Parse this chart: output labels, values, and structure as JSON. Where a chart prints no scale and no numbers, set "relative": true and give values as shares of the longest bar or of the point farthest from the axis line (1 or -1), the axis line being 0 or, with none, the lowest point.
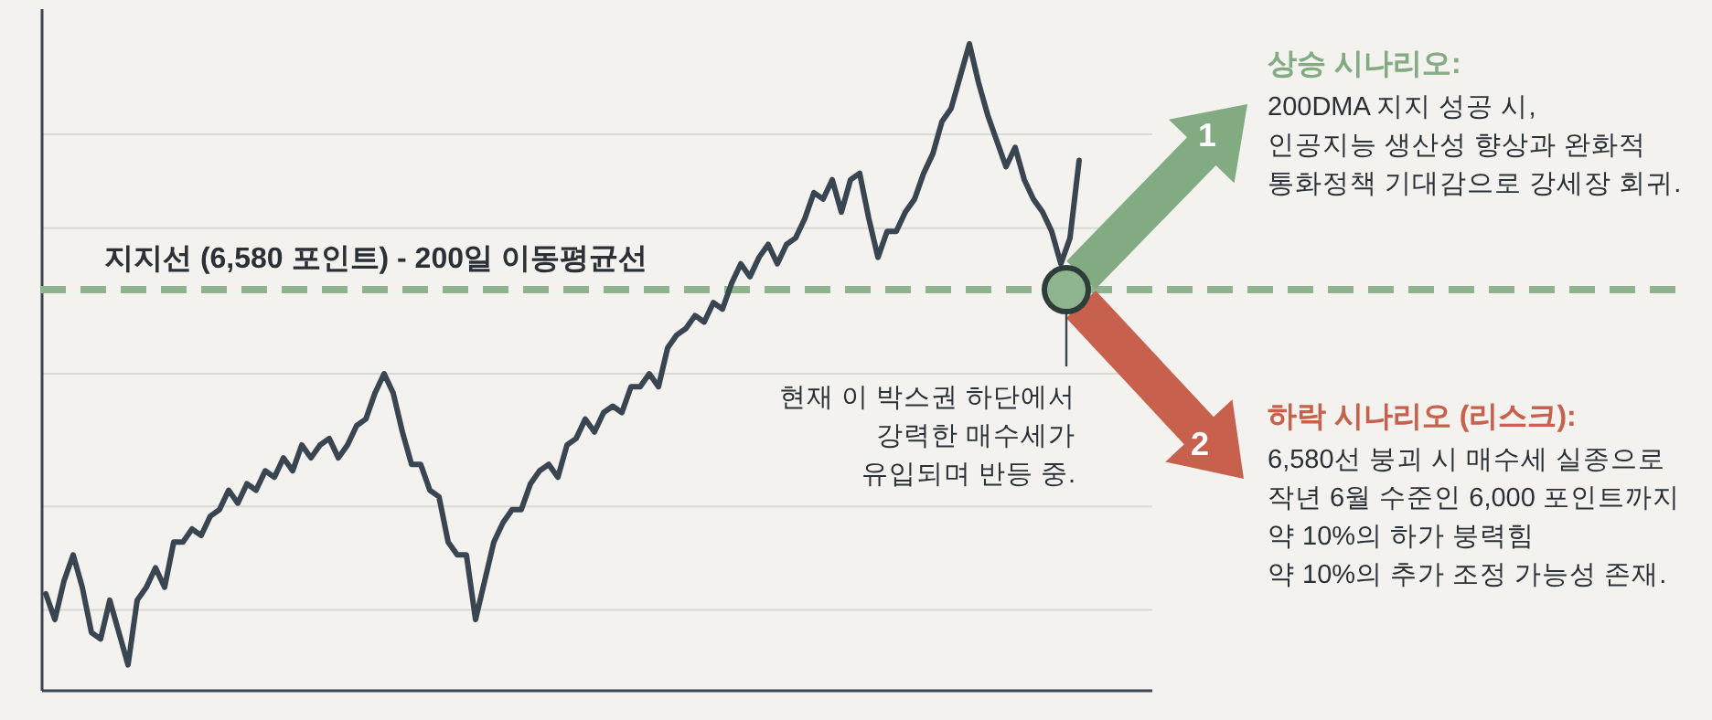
{
  "chart_data": {
    "type": "line",
    "relative": true,
    "grid": true,
    "categories": [
      null,
      null,
      null,
      null,
      null,
      null,
      null,
      null,
      null,
      null,
      null,
      null,
      null,
      null,
      null,
      null,
      null,
      null,
      null,
      null,
      null,
      null,
      null,
      null,
      null,
      null,
      null,
      null,
      null,
      null,
      null,
      null,
      null,
      null,
      null,
      null,
      null,
      null,
      null,
      null,
      null,
      null,
      null,
      null,
      null,
      null,
      null,
      null,
      null,
      null,
      null,
      null,
      null,
      null,
      null,
      null,
      null,
      null,
      null,
      null,
      null,
      null,
      null,
      null,
      null,
      null,
      null,
      null,
      null,
      null,
      null,
      null,
      null,
      null,
      null,
      null,
      null,
      null,
      null,
      null,
      null,
      null,
      null,
      null,
      null,
      null,
      null,
      null,
      null,
      null,
      null,
      null,
      null,
      null,
      null,
      null,
      null,
      null,
      null,
      null,
      null,
      null,
      null,
      null,
      null,
      null,
      null,
      null,
      null,
      null,
      null,
      null,
      null,
      null
    ],
    "series": [
      {
        "color": "#3a4552",
        "values": [
          0.15,
          0.11,
          0.17,
          0.21,
          0.16,
          0.09,
          0.08,
          0.14,
          0.09,
          0.04,
          0.14,
          0.16,
          0.19,
          0.16,
          0.23,
          0.23,
          0.25,
          0.24,
          0.27,
          0.28,
          0.31,
          0.29,
          0.32,
          0.31,
          0.34,
          0.33,
          0.36,
          0.34,
          0.38,
          0.36,
          0.38,
          0.39,
          0.36,
          0.38,
          0.41,
          0.42,
          0.46,
          0.49,
          0.46,
          0.4,
          0.35,
          0.35,
          0.31,
          0.3,
          0.23,
          0.21,
          0.21,
          0.11,
          0.17,
          0.23,
          0.26,
          0.28,
          0.28,
          0.32,
          0.34,
          0.35,
          0.33,
          0.38,
          0.39,
          0.42,
          0.4,
          0.43,
          0.44,
          0.43,
          0.47,
          0.47,
          0.49,
          0.47,
          0.53,
          0.55,
          0.56,
          0.58,
          0.57,
          0.6,
          0.59,
          0.63,
          0.66,
          0.64,
          0.67,
          0.69,
          0.66,
          0.69,
          0.7,
          0.73,
          0.77,
          0.76,
          0.79,
          0.74,
          0.79,
          0.8,
          0.73,
          0.67,
          0.71,
          0.71,
          0.74,
          0.76,
          0.8,
          0.83,
          0.88,
          0.9,
          0.95,
          1,
          0.94,
          0.89,
          0.85,
          0.81,
          0.84,
          0.79,
          0.76,
          0.74,
          0.71,
          0.66,
          0.7,
          0.82
        ]
      }
    ],
    "ref_lines": [
      {
        "axis": "y",
        "value": 0.62,
        "label": "지지선 (6,580 포인트) - 200일 이동평균선",
        "color": "#8fb58f",
        "line_style": "dashed"
      }
    ],
    "annotations": [
      "현재 이 박스권 하단에서\n강력한 매수세가\n유입되며 반등 중.",
      "1",
      "상승 시나리오:",
      "200DMA 지지 성공 시,\n인공지능 생산성 향상과 완화적\n통화정책 기대감으로 강세장 회귀.",
      "2",
      "하락 시나리오 (리스크):",
      "6,580선 붕괴 시 매수세 실종으로\n작년 6월 수준인 6,000 포인트까지\n약 10%의 하가 붕력힘\n약 10%의 추가 조정 가능성 존재."
    ]
  }
}
